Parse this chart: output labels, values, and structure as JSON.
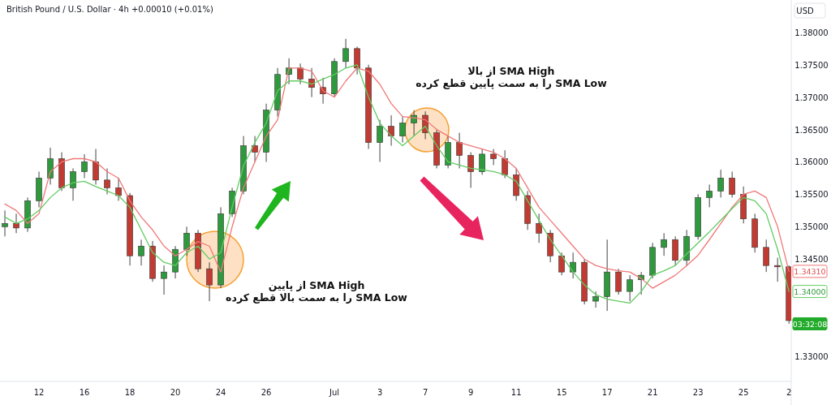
{
  "chart_data": {
    "type": "candlestick",
    "title": "British Pound / U.S. Dollar · 4h +0.00010 (+0.01%)",
    "ylabel": "USD",
    "categories": [
      null,
      null,
      null,
      "12",
      null,
      null,
      null,
      "16",
      null,
      null,
      null,
      "18",
      null,
      null,
      null,
      "20",
      null,
      null,
      null,
      "24",
      null,
      null,
      null,
      "26",
      null,
      null,
      null,
      null,
      null,
      "Jul",
      null,
      null,
      null,
      "3",
      null,
      null,
      null,
      "7",
      null,
      null,
      null,
      "9",
      null,
      null,
      null,
      "11",
      null,
      null,
      null,
      "15",
      null,
      null,
      null,
      "17",
      null,
      null,
      null,
      "21",
      null,
      null,
      null,
      "23",
      null,
      null,
      null,
      "25",
      null,
      null,
      null,
      "2"
    ],
    "ohlc": [
      [
        1.35,
        1.3525,
        1.3485,
        1.3505
      ],
      [
        1.3505,
        1.352,
        1.349,
        1.3498
      ],
      [
        1.3498,
        1.3545,
        1.3492,
        1.354
      ],
      [
        1.354,
        1.3585,
        1.353,
        1.3575
      ],
      [
        1.3575,
        1.3622,
        1.3565,
        1.3605
      ],
      [
        1.3605,
        1.3615,
        1.3555,
        1.356
      ],
      [
        1.356,
        1.359,
        1.354,
        1.3585
      ],
      [
        1.3585,
        1.3612,
        1.3575,
        1.36
      ],
      [
        1.36,
        1.362,
        1.3565,
        1.3572
      ],
      [
        1.3572,
        1.359,
        1.355,
        1.356
      ],
      [
        1.356,
        1.3575,
        1.354,
        1.3548
      ],
      [
        1.3548,
        1.3552,
        1.344,
        1.3455
      ],
      [
        1.3455,
        1.348,
        1.344,
        1.347
      ],
      [
        1.347,
        1.3478,
        1.3415,
        1.342
      ],
      [
        1.342,
        1.344,
        1.3395,
        1.343
      ],
      [
        1.343,
        1.347,
        1.342,
        1.3465
      ],
      [
        1.3465,
        1.35,
        1.3455,
        1.349
      ],
      [
        1.349,
        1.3495,
        1.343,
        1.3435
      ],
      [
        1.3435,
        1.3445,
        1.3385,
        1.341
      ],
      [
        1.341,
        1.353,
        1.3405,
        1.352
      ],
      [
        1.352,
        1.356,
        1.3515,
        1.3555
      ],
      [
        1.3555,
        1.364,
        1.355,
        1.3625
      ],
      [
        1.3625,
        1.364,
        1.36,
        1.3615
      ],
      [
        1.3615,
        1.369,
        1.36,
        1.368
      ],
      [
        1.368,
        1.3745,
        1.367,
        1.3735
      ],
      [
        1.3735,
        1.376,
        1.372,
        1.3745
      ],
      [
        1.3745,
        1.3752,
        1.372,
        1.3728
      ],
      [
        1.3728,
        1.3745,
        1.37,
        1.3715
      ],
      [
        1.3715,
        1.373,
        1.369,
        1.3705
      ],
      [
        1.3705,
        1.376,
        1.37,
        1.3755
      ],
      [
        1.3755,
        1.379,
        1.3745,
        1.3775
      ],
      [
        1.3775,
        1.3778,
        1.3735,
        1.3745
      ],
      [
        1.3745,
        1.375,
        1.362,
        1.363
      ],
      [
        1.363,
        1.3665,
        1.36,
        1.3655
      ],
      [
        1.3655,
        1.3672,
        1.3625,
        1.364
      ],
      [
        1.364,
        1.367,
        1.363,
        1.366
      ],
      [
        1.366,
        1.368,
        1.364,
        1.3672
      ],
      [
        1.3672,
        1.3678,
        1.3635,
        1.3645
      ],
      [
        1.3645,
        1.365,
        1.359,
        1.3595
      ],
      [
        1.3595,
        1.364,
        1.359,
        1.363
      ],
      [
        1.363,
        1.3645,
        1.359,
        1.361
      ],
      [
        1.361,
        1.3615,
        1.356,
        1.3585
      ],
      [
        1.3585,
        1.362,
        1.358,
        1.3612
      ],
      [
        1.3612,
        1.362,
        1.3595,
        1.3605
      ],
      [
        1.3605,
        1.3618,
        1.3575,
        1.358
      ],
      [
        1.358,
        1.359,
        1.354,
        1.3548
      ],
      [
        1.3548,
        1.3555,
        1.3495,
        1.3505
      ],
      [
        1.3505,
        1.352,
        1.3475,
        1.349
      ],
      [
        1.349,
        1.3495,
        1.3445,
        1.3455
      ],
      [
        1.3455,
        1.346,
        1.3425,
        1.343
      ],
      [
        1.343,
        1.346,
        1.342,
        1.3445
      ],
      [
        1.3445,
        1.345,
        1.338,
        1.3385
      ],
      [
        1.3385,
        1.34,
        1.3375,
        1.3392
      ],
      [
        1.3392,
        1.348,
        1.337,
        1.343
      ],
      [
        1.343,
        1.3435,
        1.3395,
        1.34
      ],
      [
        1.34,
        1.3425,
        1.3385,
        1.3418
      ],
      [
        1.3418,
        1.343,
        1.3395,
        1.3425
      ],
      [
        1.3425,
        1.3475,
        1.342,
        1.3468
      ],
      [
        1.3468,
        1.349,
        1.3455,
        1.348
      ],
      [
        1.348,
        1.3485,
        1.344,
        1.3448
      ],
      [
        1.3448,
        1.3495,
        1.344,
        1.3485
      ],
      [
        1.3485,
        1.355,
        1.348,
        1.3545
      ],
      [
        1.3545,
        1.3565,
        1.353,
        1.3555
      ],
      [
        1.3555,
        1.3588,
        1.3545,
        1.3575
      ],
      [
        1.3575,
        1.3585,
        1.3545,
        1.355
      ],
      [
        1.355,
        1.3562,
        1.3505,
        1.3512
      ],
      [
        1.3512,
        1.352,
        1.346,
        1.3468
      ],
      [
        1.3468,
        1.348,
        1.343,
        1.344
      ],
      [
        1.344,
        1.3452,
        1.3415,
        1.3438
      ],
      [
        1.3438,
        1.344,
        1.335,
        1.3355
      ]
    ],
    "series": [
      {
        "type": "line",
        "color": "#f07878",
        "values": [
          1.3535,
          1.3525,
          1.3505,
          1.352,
          1.3585,
          1.36,
          1.3605,
          1.3605,
          1.36,
          1.3585,
          1.3575,
          1.354,
          1.3515,
          1.3495,
          1.347,
          1.3455,
          1.3465,
          1.3477,
          1.347,
          1.343,
          1.35,
          1.356,
          1.36,
          1.364,
          1.3665,
          1.3745,
          1.3745,
          1.374,
          1.371,
          1.37,
          1.3725,
          1.3745,
          1.374,
          1.372,
          1.369,
          1.367,
          1.3668,
          1.3665,
          1.365,
          1.364,
          1.363,
          1.3625,
          1.362,
          1.3615,
          1.3605,
          1.359,
          1.356,
          1.353,
          1.351,
          1.349,
          1.347,
          1.345,
          1.344,
          1.3435,
          1.3432,
          1.343,
          1.342,
          1.3405,
          1.3415,
          1.3425,
          1.344,
          1.3456,
          1.348,
          1.3505,
          1.353,
          1.355,
          1.3555,
          1.3545,
          1.35,
          1.3431
        ]
      },
      {
        "type": "line",
        "color": "#62cc62",
        "values": [
          1.3515,
          1.3505,
          1.3512,
          1.3525,
          1.3545,
          1.356,
          1.3568,
          1.357,
          1.3562,
          1.3555,
          1.3548,
          1.353,
          1.3495,
          1.346,
          1.3445,
          1.344,
          1.346,
          1.347,
          1.345,
          1.346,
          1.353,
          1.3594,
          1.363,
          1.366,
          1.371,
          1.3725,
          1.3725,
          1.372,
          1.3728,
          1.3735,
          1.3745,
          1.375,
          1.37,
          1.366,
          1.364,
          1.3625,
          1.364,
          1.3655,
          1.3625,
          1.36,
          1.3595,
          1.359,
          1.3588,
          1.3585,
          1.358,
          1.357,
          1.354,
          1.351,
          1.348,
          1.3455,
          1.343,
          1.341,
          1.3395,
          1.3388,
          1.3385,
          1.3382,
          1.34,
          1.3425,
          1.3432,
          1.344,
          1.3458,
          1.3475,
          1.3492,
          1.351,
          1.3528,
          1.3545,
          1.354,
          1.352,
          1.3465,
          1.34
        ]
      }
    ],
    "ylim": [
      1.3261,
      1.385
    ],
    "yticks": [
      {
        "value": 1.33,
        "label": "1.33000"
      },
      {
        "value": 1.345,
        "label": "1.34500"
      },
      {
        "value": 1.35,
        "label": "1.35000"
      },
      {
        "value": 1.355,
        "label": "1.35500"
      },
      {
        "value": 1.36,
        "label": "1.36000"
      },
      {
        "value": 1.365,
        "label": "1.36500"
      },
      {
        "value": 1.37,
        "label": "1.37000"
      },
      {
        "value": 1.375,
        "label": "1.37500"
      },
      {
        "value": 1.38,
        "label": "1.38000"
      }
    ],
    "annotations": [
      "SMA High از بالا\nSMA Low را به سمت پایین قطع کرده",
      "SMA High  از پایین\nSMA Low را به سمت بالا قطع کرده",
      {
        "text": "1.34310",
        "y": 1.3431
      },
      {
        "text": "1.34000",
        "y": 1.34
      },
      {
        "text": "03:32:08",
        "y": 1.335
      }
    ]
  }
}
